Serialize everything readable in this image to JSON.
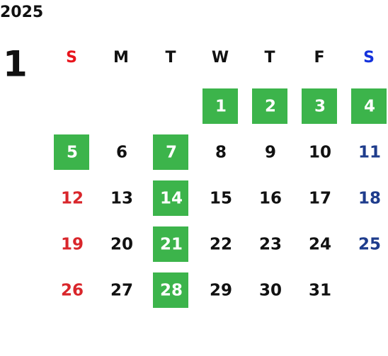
{
  "year": "2025",
  "month": "1",
  "weekdays": [
    "S",
    "M",
    "T",
    "W",
    "T",
    "F",
    "S"
  ],
  "weeks": [
    [
      null,
      null,
      null,
      {
        "day": "1",
        "highlighted": true
      },
      {
        "day": "2",
        "highlighted": true
      },
      {
        "day": "3",
        "highlighted": true
      },
      {
        "day": "4",
        "highlighted": true
      }
    ],
    [
      {
        "day": "5",
        "highlighted": true
      },
      {
        "day": "6",
        "highlighted": false
      },
      {
        "day": "7",
        "highlighted": true
      },
      {
        "day": "8",
        "highlighted": false
      },
      {
        "day": "9",
        "highlighted": false
      },
      {
        "day": "10",
        "highlighted": false
      },
      {
        "day": "11",
        "highlighted": false
      }
    ],
    [
      {
        "day": "12",
        "highlighted": false
      },
      {
        "day": "13",
        "highlighted": false
      },
      {
        "day": "14",
        "highlighted": true
      },
      {
        "day": "15",
        "highlighted": false
      },
      {
        "day": "16",
        "highlighted": false
      },
      {
        "day": "17",
        "highlighted": false
      },
      {
        "day": "18",
        "highlighted": false
      }
    ],
    [
      {
        "day": "19",
        "highlighted": false
      },
      {
        "day": "20",
        "highlighted": false
      },
      {
        "day": "21",
        "highlighted": true
      },
      {
        "day": "22",
        "highlighted": false
      },
      {
        "day": "23",
        "highlighted": false
      },
      {
        "day": "24",
        "highlighted": false
      },
      {
        "day": "25",
        "highlighted": false
      }
    ],
    [
      {
        "day": "26",
        "highlighted": false
      },
      {
        "day": "27",
        "highlighted": false
      },
      {
        "day": "28",
        "highlighted": true
      },
      {
        "day": "29",
        "highlighted": false
      },
      {
        "day": "30",
        "highlighted": false
      },
      {
        "day": "31",
        "highlighted": false
      },
      null
    ]
  ]
}
